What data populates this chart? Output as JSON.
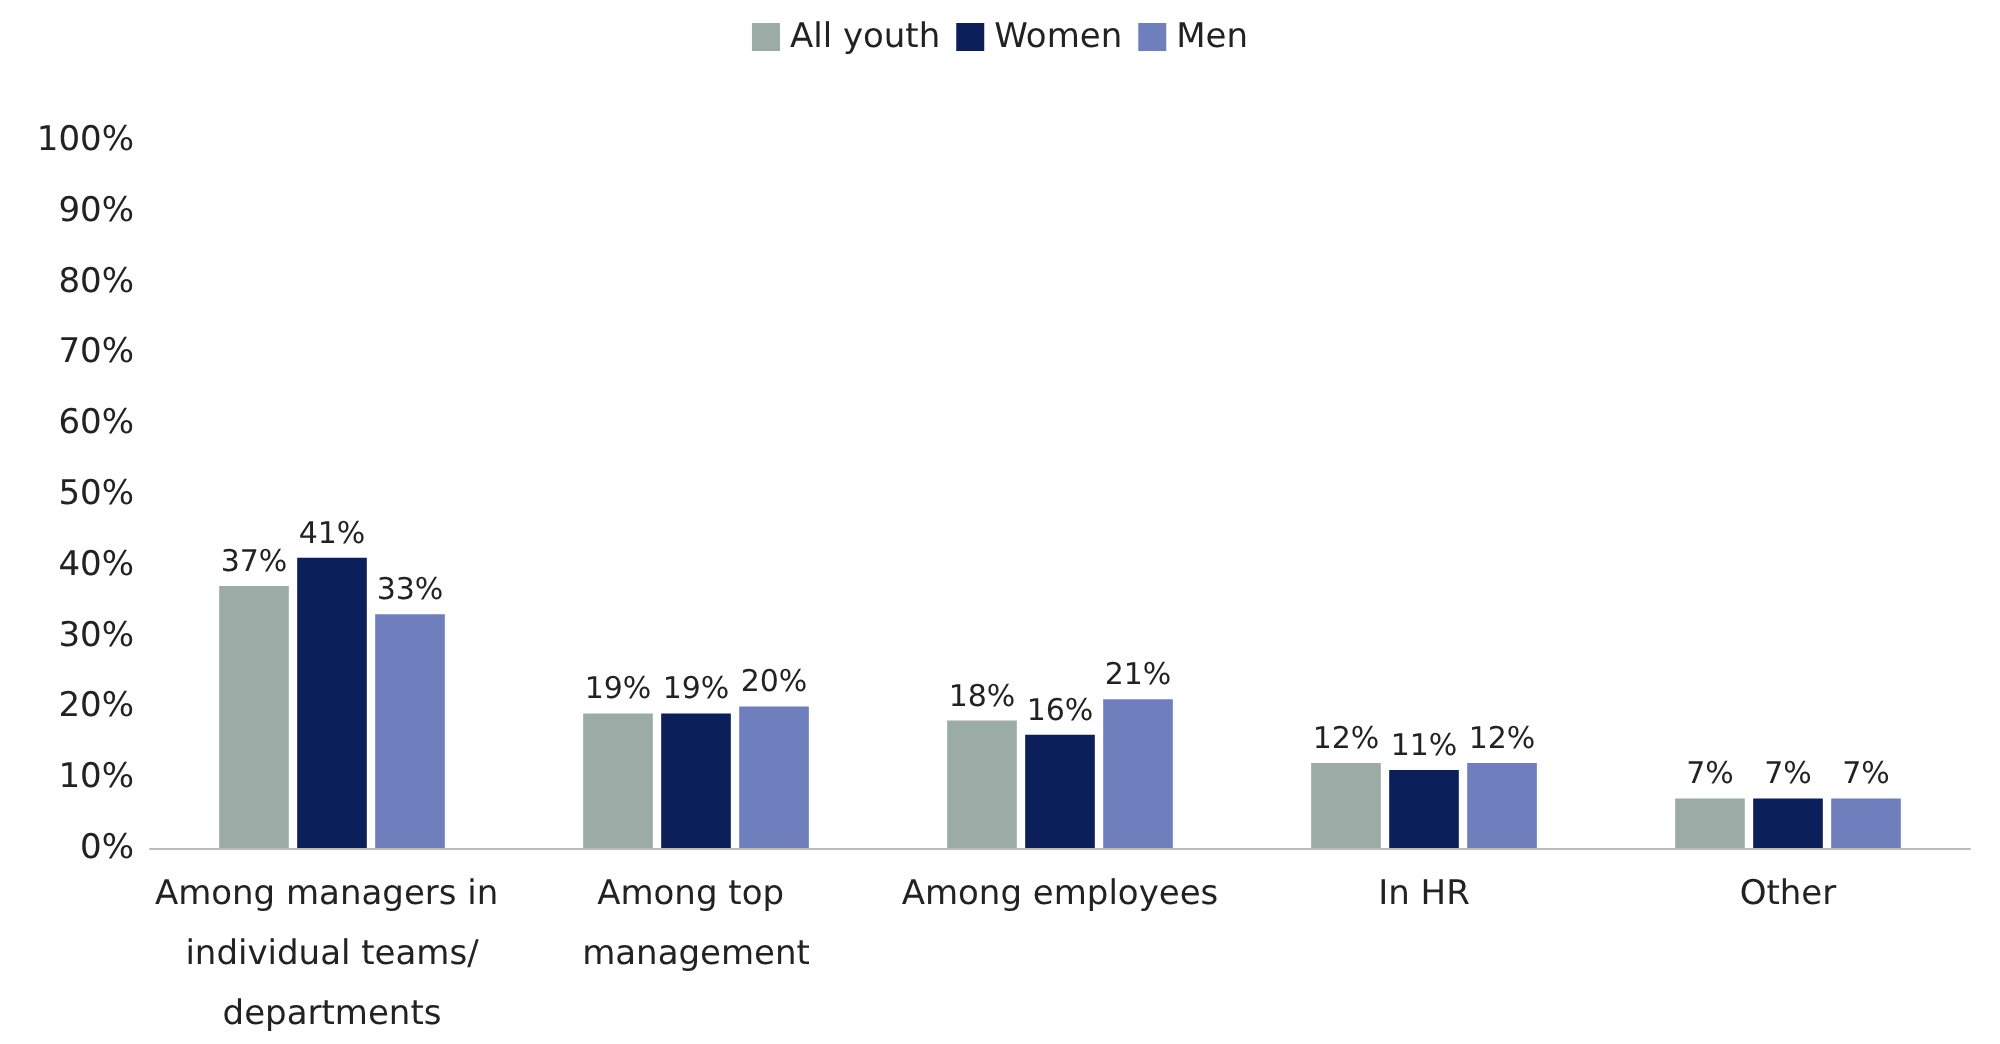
{
  "chart_data": {
    "type": "bar",
    "categories": [
      "Among managers in individual teams/departments",
      "Among top management",
      "Among employees",
      "In HR",
      "Other"
    ],
    "series": [
      {
        "name": "All youth",
        "color": "#9aaca5",
        "values": [
          37,
          19,
          18,
          12,
          7
        ],
        "value_labels": [
          "37%",
          "19%",
          "18%",
          "12%",
          "7%"
        ]
      },
      {
        "name": "Women",
        "color": "#0b1f5b",
        "values": [
          41,
          19,
          16,
          11,
          7
        ],
        "value_labels": [
          "41%",
          "19%",
          "16%",
          "11%",
          "7%"
        ]
      },
      {
        "name": "Men",
        "color": "#6f7fbd",
        "values": [
          33,
          20,
          21,
          12,
          7
        ],
        "value_labels": [
          "33%",
          "20%",
          "21%",
          "12%",
          "7%"
        ]
      }
    ],
    "ylim": [
      0,
      100
    ],
    "yticks": [
      {
        "value": 0,
        "label": "0%"
      },
      {
        "value": 10,
        "label": "10%"
      },
      {
        "value": 20,
        "label": "20%"
      },
      {
        "value": 30,
        "label": "30%"
      },
      {
        "value": 40,
        "label": "40%"
      },
      {
        "value": 50,
        "label": "50%"
      },
      {
        "value": 60,
        "label": "60%"
      },
      {
        "value": 70,
        "label": "70%"
      },
      {
        "value": 80,
        "label": "80%"
      },
      {
        "value": 90,
        "label": "90%"
      },
      {
        "value": 100,
        "label": "100%"
      }
    ],
    "grid": false,
    "legend": "top"
  }
}
